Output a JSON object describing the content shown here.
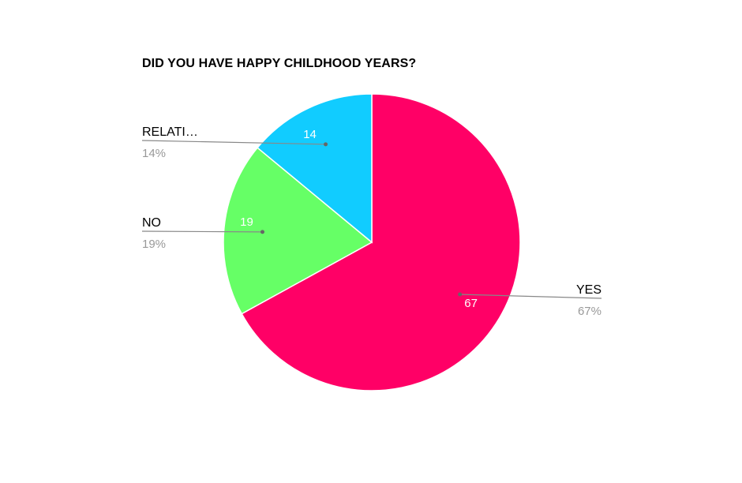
{
  "chart_data": {
    "type": "pie",
    "title": "DID YOU HAVE HAPPY CHILDHOOD YEARS?",
    "slices": [
      {
        "label": "YES",
        "value": 67,
        "percent_label": "67%",
        "color": "#ff0066"
      },
      {
        "label": "NO",
        "value": 19,
        "percent_label": "19%",
        "color": "#66ff66"
      },
      {
        "label": "RELATI…",
        "value": 14,
        "percent_label": "14%",
        "color": "#11ccff"
      }
    ],
    "start_angle": "top",
    "direction": "clockwise",
    "value_labels_on_slices": true,
    "legend": "leader-line labels"
  }
}
